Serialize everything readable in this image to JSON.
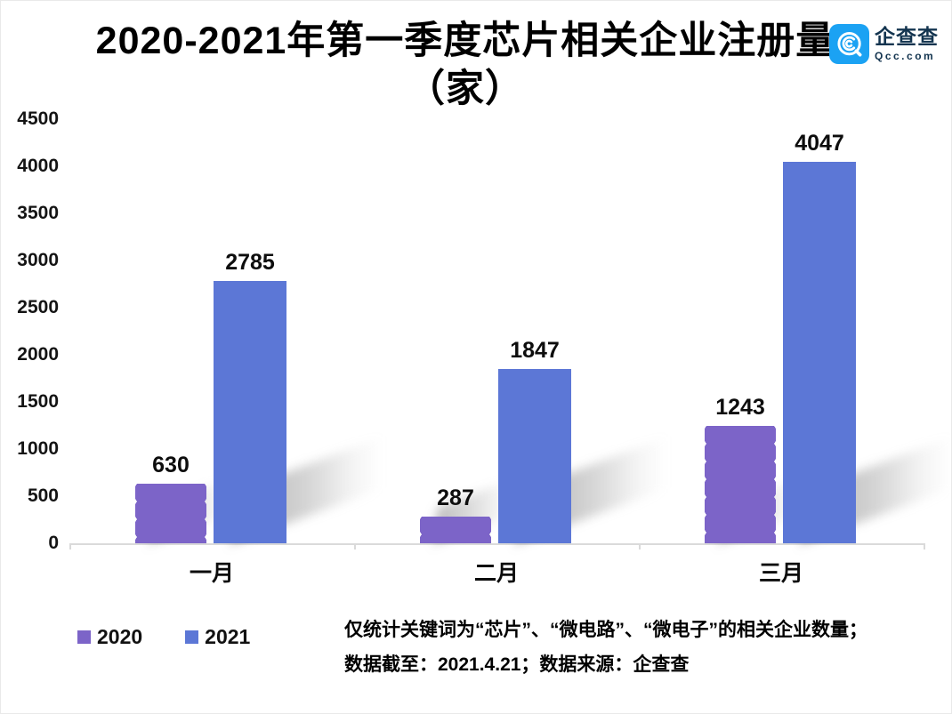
{
  "title": {
    "line1": "2020-2021年第一季度芯片相关企业注册量",
    "line2": "（家）"
  },
  "logo": {
    "name": "企查查",
    "domain": "Qcc.com",
    "icon_bg": "#1ba2f3"
  },
  "chart_data": {
    "type": "bar",
    "categories": [
      "一月",
      "二月",
      "三月"
    ],
    "series": [
      {
        "name": "2020",
        "color": "#7c64c8",
        "values": [
          630,
          287,
          1243
        ]
      },
      {
        "name": "2021",
        "color": "#5c77d6",
        "values": [
          2785,
          1847,
          4047
        ]
      }
    ],
    "value_labels": [
      [
        "630",
        "287",
        "1243"
      ],
      [
        "2785",
        "1847",
        "4047"
      ]
    ],
    "yticks": [
      "4500",
      "4000",
      "3500",
      "3000",
      "2500",
      "2000",
      "1500",
      "1000",
      "500",
      "0"
    ],
    "ylim": [
      0,
      4500
    ],
    "ytick_step": 500,
    "xlabel": "",
    "ylabel": "",
    "grid": false,
    "legend_position": "bottom-left"
  },
  "footnote": {
    "line1": "仅统计关键词为“芯片”、“微电路”、“微电子”的相关企业数量；",
    "line2": "数据截至：2021.4.21；数据来源：企查查"
  }
}
